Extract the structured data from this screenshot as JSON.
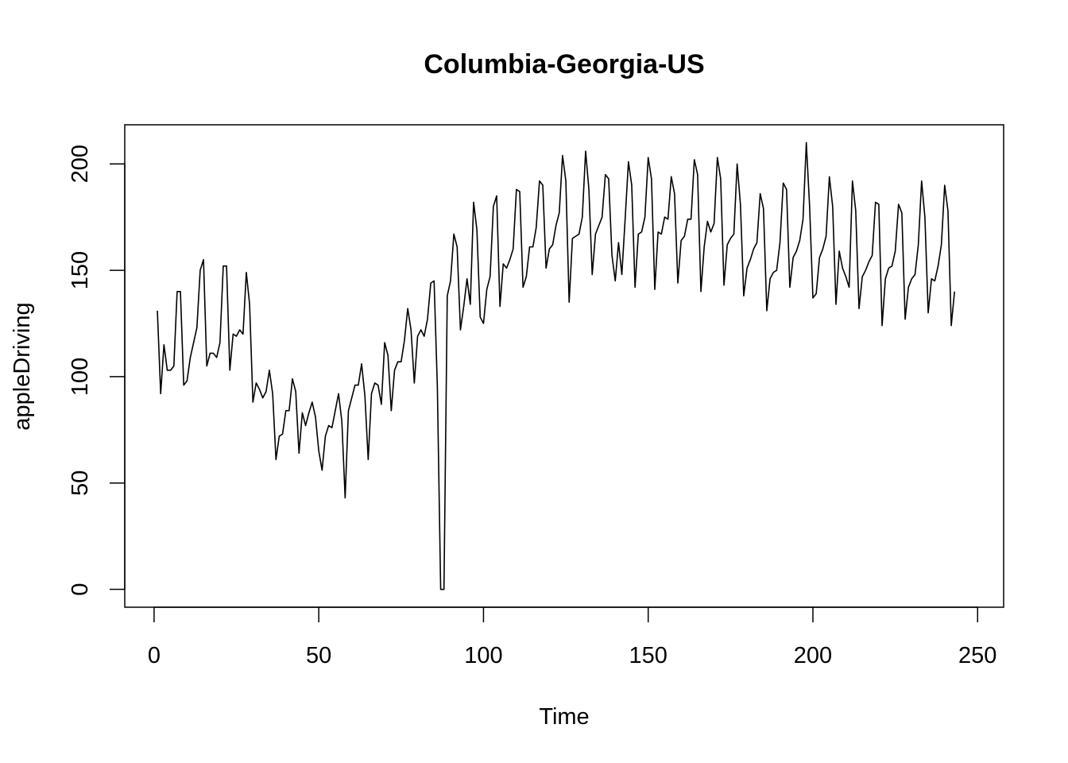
{
  "chart_data": {
    "type": "line",
    "title": "Columbia-Georgia-US",
    "xlabel": "Time",
    "ylabel": "appleDriving",
    "xlim": [
      -8.9,
      257.9
    ],
    "ylim": [
      -8.4,
      218.4
    ],
    "x_ticks": [
      0,
      50,
      100,
      150,
      200,
      250
    ],
    "y_ticks": [
      0,
      50,
      100,
      150,
      200
    ],
    "grid": false,
    "legend": "none",
    "colors": {
      "line": "#000000",
      "frame": "#000000",
      "background": "#ffffff"
    },
    "series": [
      {
        "x_start": 1,
        "values": [
          131,
          92,
          115,
          103,
          103,
          105,
          140,
          140,
          96,
          98,
          109,
          116,
          123,
          150,
          155,
          105,
          111,
          111,
          109,
          116,
          152,
          152,
          103,
          120,
          119,
          122,
          120,
          149,
          134,
          88,
          97,
          94,
          90,
          93,
          103,
          92,
          61,
          72,
          73,
          84,
          84,
          99,
          93,
          64,
          83,
          77,
          83,
          88,
          81,
          65,
          56,
          72,
          77,
          76,
          84,
          92,
          79,
          43,
          84,
          90,
          96,
          96,
          106,
          91,
          61,
          92,
          97,
          96,
          87,
          116,
          110,
          84,
          103,
          107,
          107,
          117,
          132,
          122,
          97,
          119,
          122,
          119,
          127,
          144,
          145,
          95,
          0,
          0,
          138,
          145,
          167,
          161,
          122,
          133,
          146,
          134,
          182,
          169,
          128,
          125,
          141,
          147,
          180,
          185,
          133,
          153,
          151,
          155,
          160,
          188,
          187,
          142,
          147,
          161,
          161,
          170,
          192,
          190,
          151,
          160,
          162,
          171,
          177,
          204,
          192,
          135,
          165,
          166,
          167,
          175,
          206,
          188,
          148,
          167,
          171,
          175,
          195,
          193,
          157,
          145,
          163,
          148,
          174,
          201,
          190,
          142,
          167,
          168,
          175,
          203,
          193,
          141,
          168,
          167,
          175,
          174,
          194,
          186,
          144,
          164,
          166,
          174,
          174,
          202,
          195,
          140,
          161,
          173,
          168,
          172,
          203,
          193,
          143,
          162,
          165,
          167,
          200,
          181,
          138,
          151,
          155,
          160,
          163,
          186,
          179,
          131,
          146,
          149,
          150,
          163,
          191,
          188,
          142,
          156,
          159,
          164,
          174,
          210,
          180,
          137,
          139,
          156,
          160,
          166,
          194,
          180,
          134,
          159,
          151,
          147,
          142,
          192,
          178,
          132,
          147,
          150,
          154,
          157,
          182,
          181,
          124,
          146,
          151,
          152,
          159,
          181,
          177,
          127,
          142,
          146,
          148,
          162,
          192,
          175,
          130,
          146,
          145,
          152,
          162,
          190,
          178,
          124,
          140
        ]
      }
    ]
  }
}
